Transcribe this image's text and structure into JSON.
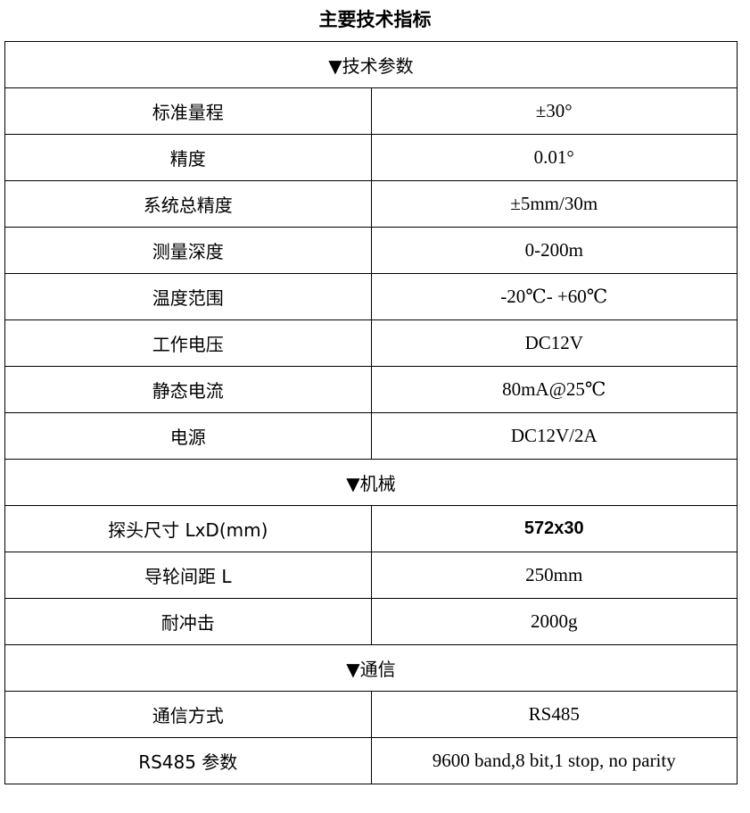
{
  "title": "主要技术指标",
  "sections": [
    {
      "header": "▼技术参数",
      "rows": [
        {
          "label": "标准量程",
          "value": "±30°"
        },
        {
          "label": "精度",
          "value": "0.01°"
        },
        {
          "label": "系统总精度",
          "value": "±5mm/30m"
        },
        {
          "label": "测量深度",
          "value": "0-200m"
        },
        {
          "label": "温度范围",
          "value": "-20℃- +60℃"
        },
        {
          "label": "工作电压",
          "value": "DC12V"
        },
        {
          "label": "静态电流",
          "value": "80mA@25℃"
        },
        {
          "label": "电源",
          "value": "DC12V/2A"
        }
      ]
    },
    {
      "header": "▼机械",
      "rows": [
        {
          "label": "探头尺寸 LxD(mm)",
          "value": "572x30"
        },
        {
          "label": "导轮间距 L",
          "value": "250mm"
        },
        {
          "label": "耐冲击",
          "value": "2000g"
        }
      ]
    },
    {
      "header": "▼通信",
      "rows": [
        {
          "label": "通信方式",
          "value": "RS485"
        },
        {
          "label": "RS485 参数",
          "value": "9600 band,8 bit,1 stop, no parity"
        }
      ]
    }
  ]
}
